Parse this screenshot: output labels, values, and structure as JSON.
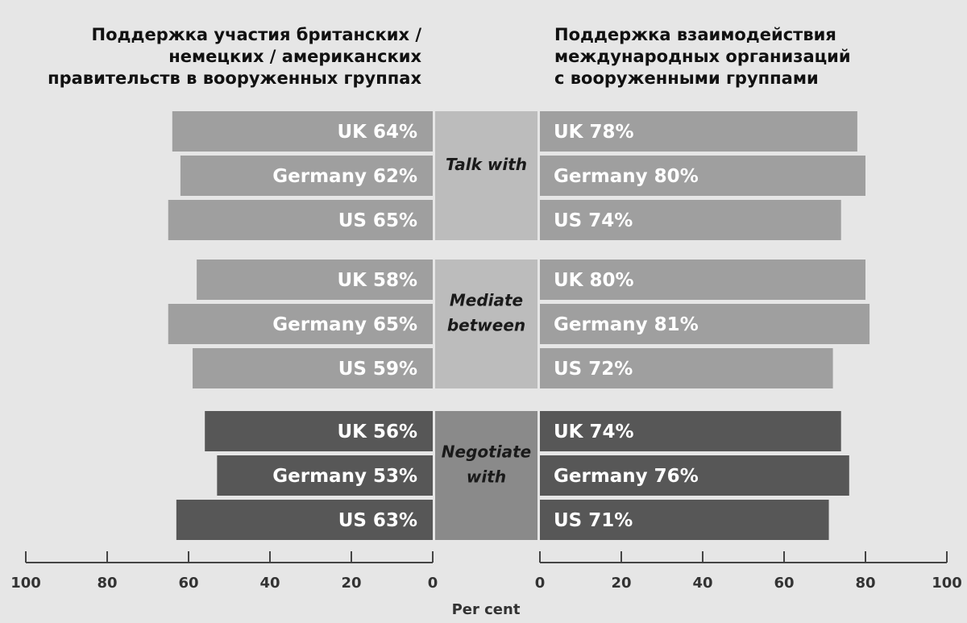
{
  "titles": {
    "left": [
      "Поддержка участия британских /",
      "немецких / американских",
      "правительств в вооруженных группах"
    ],
    "right": [
      "Поддержка взаимодействия",
      "международных организаций",
      "с вооруженными группами"
    ]
  },
  "colors": {
    "background": "#e6e6e6",
    "light_bar": "#9f9f9f",
    "dark_bar": "#575757",
    "light_center": "#bcbcbc",
    "dark_center": "#8a8a8a",
    "axis": "#444444"
  },
  "chart_data": {
    "type": "bar",
    "orientation": "horizontal-diverging",
    "countries": [
      "UK",
      "Germany",
      "US"
    ],
    "groups": [
      {
        "label": [
          "Talk with"
        ],
        "shade": "light",
        "left": [
          {
            "country": "UK",
            "value": 64,
            "label": "64%"
          },
          {
            "country": "Germany",
            "value": 62,
            "label": "62%"
          },
          {
            "country": "US",
            "value": 65,
            "label": "65%"
          }
        ],
        "right": [
          {
            "country": "UK",
            "value": 78,
            "label": "78%"
          },
          {
            "country": "Germany",
            "value": 80,
            "label": "80%"
          },
          {
            "country": "US",
            "value": 74,
            "label": "74%"
          }
        ]
      },
      {
        "label": [
          "Mediate",
          "between"
        ],
        "shade": "light",
        "left": [
          {
            "country": "UK",
            "value": 58,
            "label": "58%"
          },
          {
            "country": "Germany",
            "value": 65,
            "label": "65%"
          },
          {
            "country": "US",
            "value": 59,
            "label": "59%"
          }
        ],
        "right": [
          {
            "country": "UK",
            "value": 80,
            "label": "80%"
          },
          {
            "country": "Germany",
            "value": 81,
            "label": "81%"
          },
          {
            "country": "US",
            "value": 72,
            "label": "72%"
          }
        ]
      },
      {
        "label": [
          "Negotiate",
          "with"
        ],
        "shade": "dark",
        "left": [
          {
            "country": "UK",
            "value": 56,
            "label": "56%"
          },
          {
            "country": "Germany",
            "value": 53,
            "label": "53%"
          },
          {
            "country": "US",
            "value": 63,
            "label": "63%"
          }
        ],
        "right": [
          {
            "country": "UK",
            "value": 74,
            "label": "74%"
          },
          {
            "country": "Germany",
            "value": 76,
            "label": "76%"
          },
          {
            "country": "US",
            "value": 71,
            "label": "71%"
          }
        ]
      }
    ],
    "xlim": [
      0,
      100
    ],
    "xticks": [
      0,
      20,
      40,
      60,
      80,
      100
    ],
    "xlabel": "Per cent",
    "grid": false
  }
}
